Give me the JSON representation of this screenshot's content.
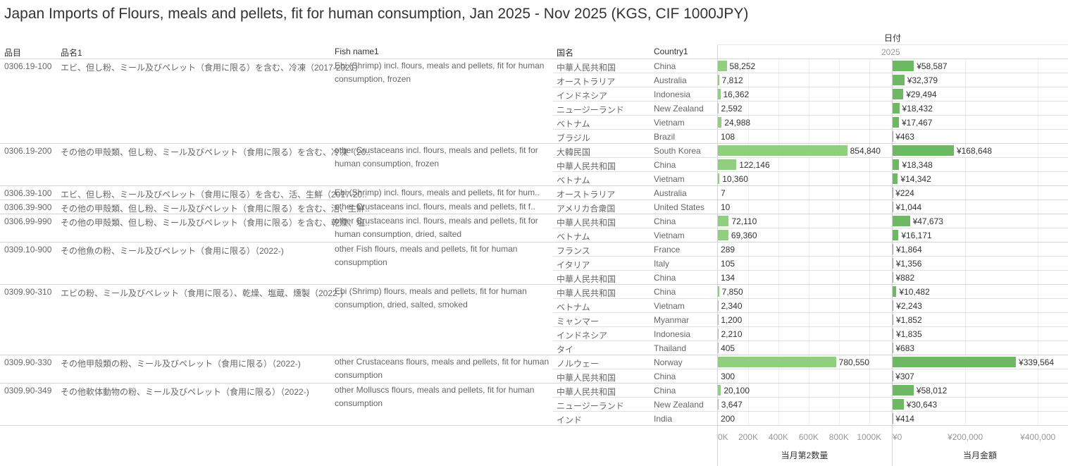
{
  "title": "Japan Imports of Flours, meals and pellets, fit for human consumption, Jan 2025 - Nov 2025 (KGS, CIF 1000JPY)",
  "headers": {
    "code": "品目",
    "name_jp": "品名1",
    "fish_name": "Fish name1",
    "country_jp": "国名",
    "country_en": "Country1",
    "date": "日付",
    "year": "2025"
  },
  "colors": {
    "qty_bar": "#8fd07f",
    "amount_bar": "#6db863"
  },
  "chart_data": {
    "type": "bar",
    "title": "Japan Imports of Flours, meals and pellets, fit for human consumption, Jan 2025 - Nov 2025 (KGS, CIF 1000JPY)",
    "axes": [
      {
        "label": "当月第2数量",
        "ticks": [
          "0K",
          "200K",
          "400K",
          "600K",
          "800K",
          "1000K"
        ],
        "tick_values": [
          0,
          200000,
          400000,
          600000,
          800000,
          1000000
        ],
        "range": [
          0,
          1150000
        ]
      },
      {
        "label": "当月金額",
        "ticks": [
          "¥0",
          "¥200,000",
          "¥400,000"
        ],
        "tick_values": [
          0,
          200000,
          400000
        ],
        "range": [
          0,
          483000
        ]
      }
    ],
    "groups": [
      {
        "code": "0306.19-100",
        "name_jp": "エビ、但し粉、ミール及びペレット（食用に限る）を含む、冷凍（2017-2021）",
        "fish_name": "Ebi (Shrimp) incl. flours, meals and pellets, fit for human consumption, frozen",
        "rows": [
          {
            "country_jp": "中華人民共和国",
            "country_en": "China",
            "qty": 58252,
            "qty_label": "58,252",
            "amount": 58587,
            "amount_label": "¥58,587"
          },
          {
            "country_jp": "オーストラリア",
            "country_en": "Australia",
            "qty": 7812,
            "qty_label": "7,812",
            "amount": 32379,
            "amount_label": "¥32,379"
          },
          {
            "country_jp": "インドネシア",
            "country_en": "Indonesia",
            "qty": 16362,
            "qty_label": "16,362",
            "amount": 29494,
            "amount_label": "¥29,494"
          },
          {
            "country_jp": "ニュージーランド",
            "country_en": "New Zealand",
            "qty": 2592,
            "qty_label": "2,592",
            "amount": 18432,
            "amount_label": "¥18,432"
          },
          {
            "country_jp": "ベトナム",
            "country_en": "Vietnam",
            "qty": 24988,
            "qty_label": "24,988",
            "amount": 17467,
            "amount_label": "¥17,467"
          },
          {
            "country_jp": "ブラジル",
            "country_en": "Brazil",
            "qty": 108,
            "qty_label": "108",
            "amount": 463,
            "amount_label": "¥463"
          }
        ]
      },
      {
        "code": "0306.19-200",
        "name_jp": "その他の甲殻類、但し粉、ミール及びペレット（食用に限る）を含む、冷凍（20..",
        "fish_name": "other Crustaceans incl. flours, meals and pellets, fit for human consumption, frozen",
        "rows": [
          {
            "country_jp": "大韓民国",
            "country_en": "South Korea",
            "qty": 854840,
            "qty_label": "854,840",
            "amount": 168648,
            "amount_label": "¥168,648"
          },
          {
            "country_jp": "中華人民共和国",
            "country_en": "China",
            "qty": 122146,
            "qty_label": "122,146",
            "amount": 18348,
            "amount_label": "¥18,348"
          },
          {
            "country_jp": "ベトナム",
            "country_en": "Vietnam",
            "qty": 10360,
            "qty_label": "10,360",
            "amount": 14342,
            "amount_label": "¥14,342"
          }
        ]
      },
      {
        "code": "0306.39-100",
        "name_jp": "エビ、但し粉、ミール及びペレット（食用に限る）を含む、活、生鮮（2017-20..",
        "fish_name": "Ebi (Shrimp) incl. flours, meals and pellets, fit for hum..",
        "rows": [
          {
            "country_jp": "オーストラリア",
            "country_en": "Australia",
            "qty": 7,
            "qty_label": "7",
            "amount": 224,
            "amount_label": "¥224"
          }
        ]
      },
      {
        "code": "0306.39-900",
        "name_jp": "その他の甲殻類、但し粉、ミール及びペレット（食用に限る）を含む、活、生鮮..",
        "fish_name": "other Crustaceans incl. flours, meals and pellets, fit f..",
        "rows": [
          {
            "country_jp": "アメリカ合衆国",
            "country_en": "United States",
            "qty": 10,
            "qty_label": "10",
            "amount": 1044,
            "amount_label": "¥1,044"
          }
        ]
      },
      {
        "code": "0306.99-990",
        "name_jp": "その他の甲殻類、但し粉、ミール及びペレット（食用に限る）を含む、乾燥、塩..",
        "fish_name": "other Crustaceans incl. flours, meals and pellets, fit for human consumption, dried, salted",
        "rows": [
          {
            "country_jp": "中華人民共和国",
            "country_en": "China",
            "qty": 72110,
            "qty_label": "72,110",
            "amount": 47673,
            "amount_label": "¥47,673"
          },
          {
            "country_jp": "ベトナム",
            "country_en": "Vietnam",
            "qty": 69360,
            "qty_label": "69,360",
            "amount": 16171,
            "amount_label": "¥16,171"
          }
        ]
      },
      {
        "code": "0309.10-900",
        "name_jp": "その他魚の粉、ミール及びペレット（食用に限る）（2022-)",
        "fish_name": "other Fish flours, meals and pellets, fit for human consupmption",
        "rows": [
          {
            "country_jp": "フランス",
            "country_en": "France",
            "qty": 289,
            "qty_label": "289",
            "amount": 1864,
            "amount_label": "¥1,864"
          },
          {
            "country_jp": "イタリア",
            "country_en": "Italy",
            "qty": 105,
            "qty_label": "105",
            "amount": 1356,
            "amount_label": "¥1,356"
          },
          {
            "country_jp": "中華人民共和国",
            "country_en": "China",
            "qty": 134,
            "qty_label": "134",
            "amount": 882,
            "amount_label": "¥882"
          }
        ]
      },
      {
        "code": "0309.90-310",
        "name_jp": "エビの粉、ミール及びペレット（食用に限る）、乾燥、塩蔵、燻製（2022-)",
        "fish_name": "Ebi (Shrimp) flours, meals and pellets, fit for human consumption, dried, salted, smoked",
        "rows": [
          {
            "country_jp": "中華人民共和国",
            "country_en": "China",
            "qty": 7850,
            "qty_label": "7,850",
            "amount": 10482,
            "amount_label": "¥10,482"
          },
          {
            "country_jp": "ベトナム",
            "country_en": "Vietnam",
            "qty": 2340,
            "qty_label": "2,340",
            "amount": 2243,
            "amount_label": "¥2,243"
          },
          {
            "country_jp": "ミャンマー",
            "country_en": "Myanmar",
            "qty": 1200,
            "qty_label": "1,200",
            "amount": 1852,
            "amount_label": "¥1,852"
          },
          {
            "country_jp": "インドネシア",
            "country_en": "Indonesia",
            "qty": 2210,
            "qty_label": "2,210",
            "amount": 1835,
            "amount_label": "¥1,835"
          },
          {
            "country_jp": "タイ",
            "country_en": "Thailand",
            "qty": 405,
            "qty_label": "405",
            "amount": 683,
            "amount_label": "¥683"
          }
        ]
      },
      {
        "code": "0309.90-330",
        "name_jp": "その他甲殻類の粉、ミール及びペレット（食用に限る）（2022-)",
        "fish_name": "other Crustaceans flours, meals and pellets, fit for human consumption",
        "rows": [
          {
            "country_jp": "ノルウェー",
            "country_en": "Norway",
            "qty": 780550,
            "qty_label": "780,550",
            "amount": 339564,
            "amount_label": "¥339,564"
          },
          {
            "country_jp": "中華人民共和国",
            "country_en": "China",
            "qty": 300,
            "qty_label": "300",
            "amount": 307,
            "amount_label": "¥307"
          }
        ]
      },
      {
        "code": "0309.90-349",
        "name_jp": "その他軟体動物の粉、ミール及びペレット（食用に限る）（2022-)",
        "fish_name": "other Molluscs flours, meals and pellets, fit for human consumption",
        "rows": [
          {
            "country_jp": "中華人民共和国",
            "country_en": "China",
            "qty": 20100,
            "qty_label": "20,100",
            "amount": 58012,
            "amount_label": "¥58,012"
          },
          {
            "country_jp": "ニュージーランド",
            "country_en": "New Zealand",
            "qty": 3647,
            "qty_label": "3,647",
            "amount": 30643,
            "amount_label": "¥30,643"
          },
          {
            "country_jp": "インド",
            "country_en": "India",
            "qty": 200,
            "qty_label": "200",
            "amount": 414,
            "amount_label": "¥414"
          }
        ]
      }
    ]
  }
}
